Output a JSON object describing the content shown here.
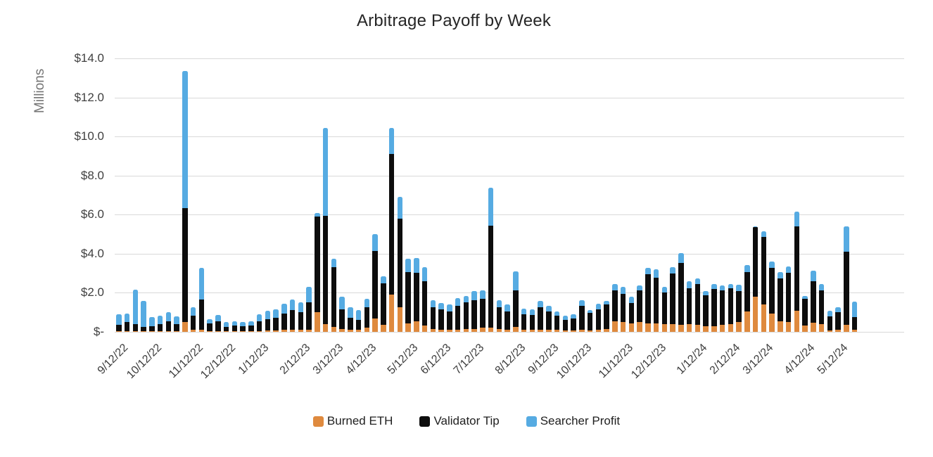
{
  "chart_data": {
    "type": "bar",
    "stacked": true,
    "title": "Arbitrage Payoff by Week",
    "ylabel": "Millions",
    "ylim": [
      0,
      14
    ],
    "y_step": 2,
    "grid": true,
    "legend_position": "bottom",
    "y_tick_labels": [
      "$14.0",
      "$12.0",
      "$10.0",
      "$8.0",
      "$6.0",
      "$4.0",
      "$2.0",
      "$-"
    ],
    "series": [
      {
        "name": "Burned ETH",
        "color": "#DF8A3E"
      },
      {
        "name": "Validator Tip",
        "color": "#0D0D0D"
      },
      {
        "name": "Searcher Profit",
        "color": "#56ABE2"
      }
    ],
    "x_tick_labels": [
      {
        "label": "9/12/22",
        "week_index": 0
      },
      {
        "label": "10/12/22",
        "week_index": 4
      },
      {
        "label": "11/12/22",
        "week_index": 9
      },
      {
        "label": "12/12/22",
        "week_index": 13
      },
      {
        "label": "1/12/23",
        "week_index": 17
      },
      {
        "label": "2/12/23",
        "week_index": 22
      },
      {
        "label": "3/12/23",
        "week_index": 26
      },
      {
        "label": "4/12/23",
        "week_index": 30
      },
      {
        "label": "5/12/23",
        "week_index": 35
      },
      {
        "label": "6/12/23",
        "week_index": 39
      },
      {
        "label": "7/12/23",
        "week_index": 43
      },
      {
        "label": "8/12/23",
        "week_index": 48
      },
      {
        "label": "9/12/23",
        "week_index": 52
      },
      {
        "label": "10/12/23",
        "week_index": 56
      },
      {
        "label": "11/12/23",
        "week_index": 61
      },
      {
        "label": "12/12/23",
        "week_index": 65
      },
      {
        "label": "1/12/24",
        "week_index": 70
      },
      {
        "label": "2/12/24",
        "week_index": 74
      },
      {
        "label": "3/12/24",
        "week_index": 78
      },
      {
        "label": "4/12/24",
        "week_index": 83
      },
      {
        "label": "5/12/24",
        "week_index": 87
      }
    ],
    "bars_note": "weekly stacked values in $ millions, order [Burned ETH, Validator Tip, Searcher Profit]",
    "bars": [
      [
        0.05,
        0.3,
        0.55
      ],
      [
        0.05,
        0.45,
        0.45
      ],
      [
        0.05,
        0.35,
        1.75
      ],
      [
        0.04,
        0.21,
        1.35
      ],
      [
        0.04,
        0.25,
        0.48
      ],
      [
        0.05,
        0.36,
        0.41
      ],
      [
        0.05,
        0.5,
        0.45
      ],
      [
        0.05,
        0.35,
        0.39
      ],
      [
        0.5,
        5.85,
        7.0
      ],
      [
        0.1,
        0.72,
        0.45
      ],
      [
        0.12,
        1.55,
        1.61
      ],
      [
        0.05,
        0.38,
        0.22
      ],
      [
        0.05,
        0.5,
        0.3
      ],
      [
        0.03,
        0.22,
        0.24
      ],
      [
        0.04,
        0.27,
        0.24
      ],
      [
        0.04,
        0.26,
        0.2
      ],
      [
        0.04,
        0.3,
        0.21
      ],
      [
        0.05,
        0.5,
        0.34
      ],
      [
        0.06,
        0.6,
        0.43
      ],
      [
        0.07,
        0.65,
        0.45
      ],
      [
        0.1,
        0.85,
        0.5
      ],
      [
        0.1,
        1.0,
        0.55
      ],
      [
        0.1,
        0.9,
        0.5
      ],
      [
        0.12,
        1.4,
        0.78
      ],
      [
        1.0,
        4.9,
        0.2
      ],
      [
        0.4,
        5.55,
        4.5
      ],
      [
        0.25,
        3.05,
        0.45
      ],
      [
        0.15,
        1.0,
        0.66
      ],
      [
        0.12,
        0.61,
        0.54
      ],
      [
        0.1,
        0.51,
        0.49
      ],
      [
        0.2,
        1.07,
        0.42
      ],
      [
        0.7,
        3.45,
        0.86
      ],
      [
        0.35,
        2.12,
        0.38
      ],
      [
        1.9,
        7.19,
        1.36
      ],
      [
        1.25,
        4.56,
        1.1
      ],
      [
        0.45,
        2.62,
        0.68
      ],
      [
        0.53,
        2.48,
        0.78
      ],
      [
        0.34,
        2.25,
        0.74
      ],
      [
        0.15,
        1.12,
        0.36
      ],
      [
        0.12,
        1.03,
        0.34
      ],
      [
        0.1,
        0.96,
        0.33
      ],
      [
        0.12,
        1.21,
        0.4
      ],
      [
        0.15,
        1.36,
        0.34
      ],
      [
        0.15,
        1.46,
        0.48
      ],
      [
        0.2,
        1.49,
        0.42
      ],
      [
        0.2,
        5.23,
        1.96
      ],
      [
        0.15,
        1.12,
        0.36
      ],
      [
        0.12,
        0.94,
        0.35
      ],
      [
        0.25,
        1.86,
        0.98
      ],
      [
        0.1,
        0.81,
        0.27
      ],
      [
        0.1,
        0.75,
        0.3
      ],
      [
        0.12,
        1.15,
        0.33
      ],
      [
        0.1,
        0.93,
        0.32
      ],
      [
        0.1,
        0.72,
        0.21
      ],
      [
        0.08,
        0.53,
        0.21
      ],
      [
        0.08,
        0.59,
        0.22
      ],
      [
        0.1,
        1.23,
        0.28
      ],
      [
        0.07,
        0.9,
        0.16
      ],
      [
        0.12,
        1.05,
        0.28
      ],
      [
        0.15,
        1.24,
        0.21
      ],
      [
        0.55,
        1.58,
        0.32
      ],
      [
        0.5,
        1.43,
        0.36
      ],
      [
        0.45,
        1.04,
        0.32
      ],
      [
        0.5,
        1.63,
        0.24
      ],
      [
        0.43,
        2.52,
        0.34
      ],
      [
        0.45,
        2.32,
        0.42
      ],
      [
        0.4,
        1.61,
        0.28
      ],
      [
        0.4,
        2.57,
        0.34
      ],
      [
        0.37,
        3.16,
        0.52
      ],
      [
        0.4,
        1.83,
        0.36
      ],
      [
        0.35,
        2.1,
        0.28
      ],
      [
        0.3,
        1.57,
        0.22
      ],
      [
        0.3,
        1.91,
        0.24
      ],
      [
        0.35,
        1.78,
        0.24
      ],
      [
        0.4,
        1.83,
        0.22
      ],
      [
        0.49,
        1.6,
        0.32
      ],
      [
        1.03,
        2.04,
        0.34
      ],
      [
        1.81,
        3.55,
        0.05
      ],
      [
        1.39,
        3.48,
        0.26
      ],
      [
        0.94,
        2.35,
        0.32
      ],
      [
        0.55,
        2.18,
        0.34
      ],
      [
        0.49,
        2.52,
        0.32
      ],
      [
        1.09,
        4.32,
        0.75
      ],
      [
        0.31,
        1.38,
        0.16
      ],
      [
        0.46,
        2.13,
        0.54
      ],
      [
        0.41,
        1.7,
        0.34
      ],
      [
        0.08,
        0.71,
        0.3
      ],
      [
        0.1,
        0.91,
        0.26
      ],
      [
        0.35,
        3.74,
        1.32
      ],
      [
        0.1,
        0.65,
        0.8
      ]
    ]
  }
}
